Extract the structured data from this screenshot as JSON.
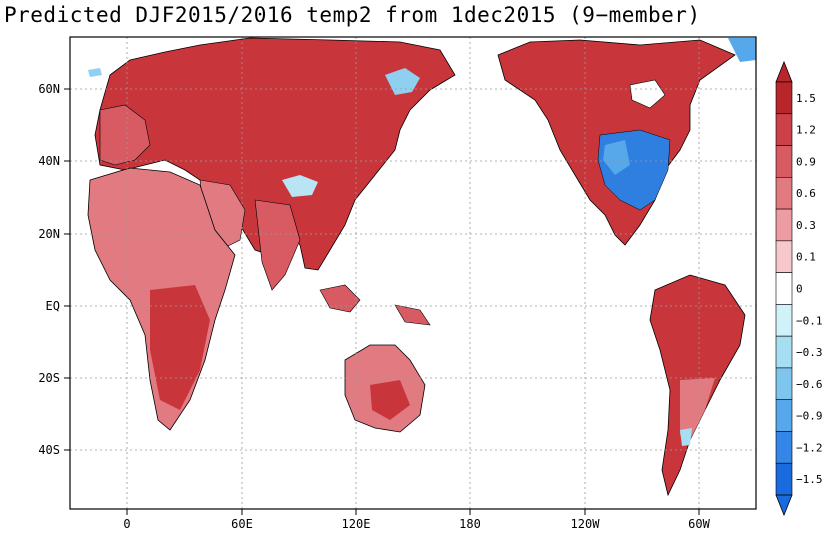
{
  "title": "Predicted DJF2015/2016 temp2 from 1dec2015 (9−member)",
  "map": {
    "lon_ticks": [
      "0",
      "60E",
      "120E",
      "180",
      "120W",
      "60W"
    ],
    "lat_ticks": [
      "60N",
      "40N",
      "20N",
      "EQ",
      "20S",
      "40S"
    ]
  },
  "colorbar": {
    "labels": [
      "1.5",
      "1.2",
      "0.9",
      "0.6",
      "0.3",
      "0.1",
      "0",
      "−0.1",
      "−0.3",
      "−0.6",
      "−0.9",
      "−1.2",
      "−1.5"
    ],
    "colors": [
      "#b8262c",
      "#cc4048",
      "#d85a62",
      "#e27a82",
      "#ec9ca2",
      "#f6c8cc",
      "#ffffff",
      "#d2f2fa",
      "#a6def2",
      "#7fc6ee",
      "#56a8ea",
      "#3486e8",
      "#1a6be0"
    ]
  }
}
